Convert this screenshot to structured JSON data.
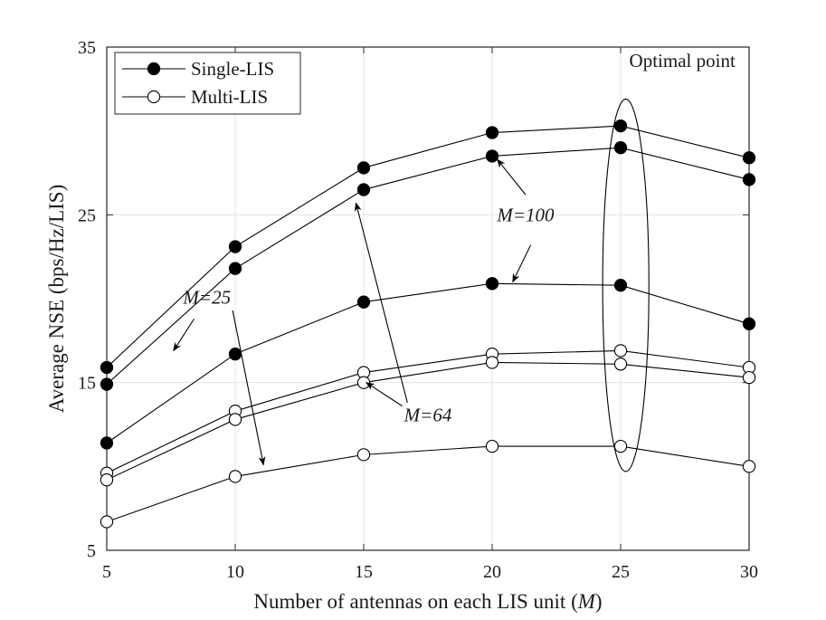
{
  "chart_data": {
    "type": "line",
    "title": "",
    "xlabel_text": "Number of antennas on each LIS unit (",
    "xlabel_var": "M",
    "xlabel_close": ")",
    "ylabel": "Average NSE (bps/Hz/LIS)",
    "x": [
      5,
      10,
      15,
      20,
      25,
      30
    ],
    "xlim": [
      5,
      30
    ],
    "ylim": [
      5,
      35
    ],
    "xticks": [
      "5",
      "10",
      "15",
      "20",
      "25",
      "30"
    ],
    "yticks": [
      "5",
      "15",
      "25",
      "35"
    ],
    "ytick_values": [
      5,
      15,
      25,
      35
    ],
    "grid": true,
    "legend_position": "top-left",
    "legend": [
      {
        "label": "Single-LIS",
        "marker": "filled-circle"
      },
      {
        "label": "Multi-LIS",
        "marker": "open-circle"
      }
    ],
    "series": [
      {
        "name": "Single-LIS M=100 (1)",
        "group": "Single-LIS",
        "values": [
          15.9,
          23.1,
          27.8,
          29.9,
          30.3,
          28.4
        ]
      },
      {
        "name": "Single-LIS M=100 (2)",
        "group": "Single-LIS",
        "values": [
          14.9,
          21.8,
          26.5,
          28.5,
          29.0,
          27.1
        ]
      },
      {
        "name": "Single-LIS M=25",
        "group": "Single-LIS",
        "values": [
          11.4,
          16.7,
          19.8,
          20.9,
          20.8,
          18.5
        ]
      },
      {
        "name": "Multi-LIS M=64 (1)",
        "group": "Multi-LIS",
        "values": [
          9.6,
          13.3,
          15.6,
          16.7,
          16.9,
          15.9
        ]
      },
      {
        "name": "Multi-LIS M=64 (2)",
        "group": "Multi-LIS",
        "values": [
          9.2,
          12.8,
          15.0,
          16.2,
          16.1,
          15.3
        ]
      },
      {
        "name": "Multi-LIS M=25",
        "group": "Multi-LIS",
        "values": [
          6.7,
          9.4,
          10.7,
          11.2,
          11.2,
          10.0
        ]
      }
    ],
    "annotations": {
      "optimal_label": "Optimal point",
      "optimal_ellipse": {
        "cx": 25.2,
        "cy": 20.8,
        "rx": 0.9,
        "ry": 11.1
      },
      "m100_label": "M=100",
      "m64_label": "M=64",
      "m25_label": "M=25",
      "m100_pos": [
        21.3,
        24.6
      ],
      "m64_pos": [
        17.5,
        12.7
      ],
      "m25_pos": [
        8.9,
        19.7
      ],
      "arrows": [
        {
          "from": [
            21.3,
            26.2
          ],
          "to": [
            20.2,
            28.3
          ]
        },
        {
          "from": [
            21.5,
            23.2
          ],
          "to": [
            20.8,
            21.0
          ]
        },
        {
          "from": [
            16.5,
            13.6
          ],
          "to": [
            15.1,
            15.0
          ]
        },
        {
          "from": [
            16.7,
            13.8
          ],
          "to": [
            14.7,
            25.7
          ]
        },
        {
          "from": [
            8.4,
            18.8
          ],
          "to": [
            7.6,
            16.9
          ]
        },
        {
          "from": [
            9.9,
            19.3
          ],
          "to": [
            11.1,
            10.1
          ]
        }
      ]
    }
  }
}
